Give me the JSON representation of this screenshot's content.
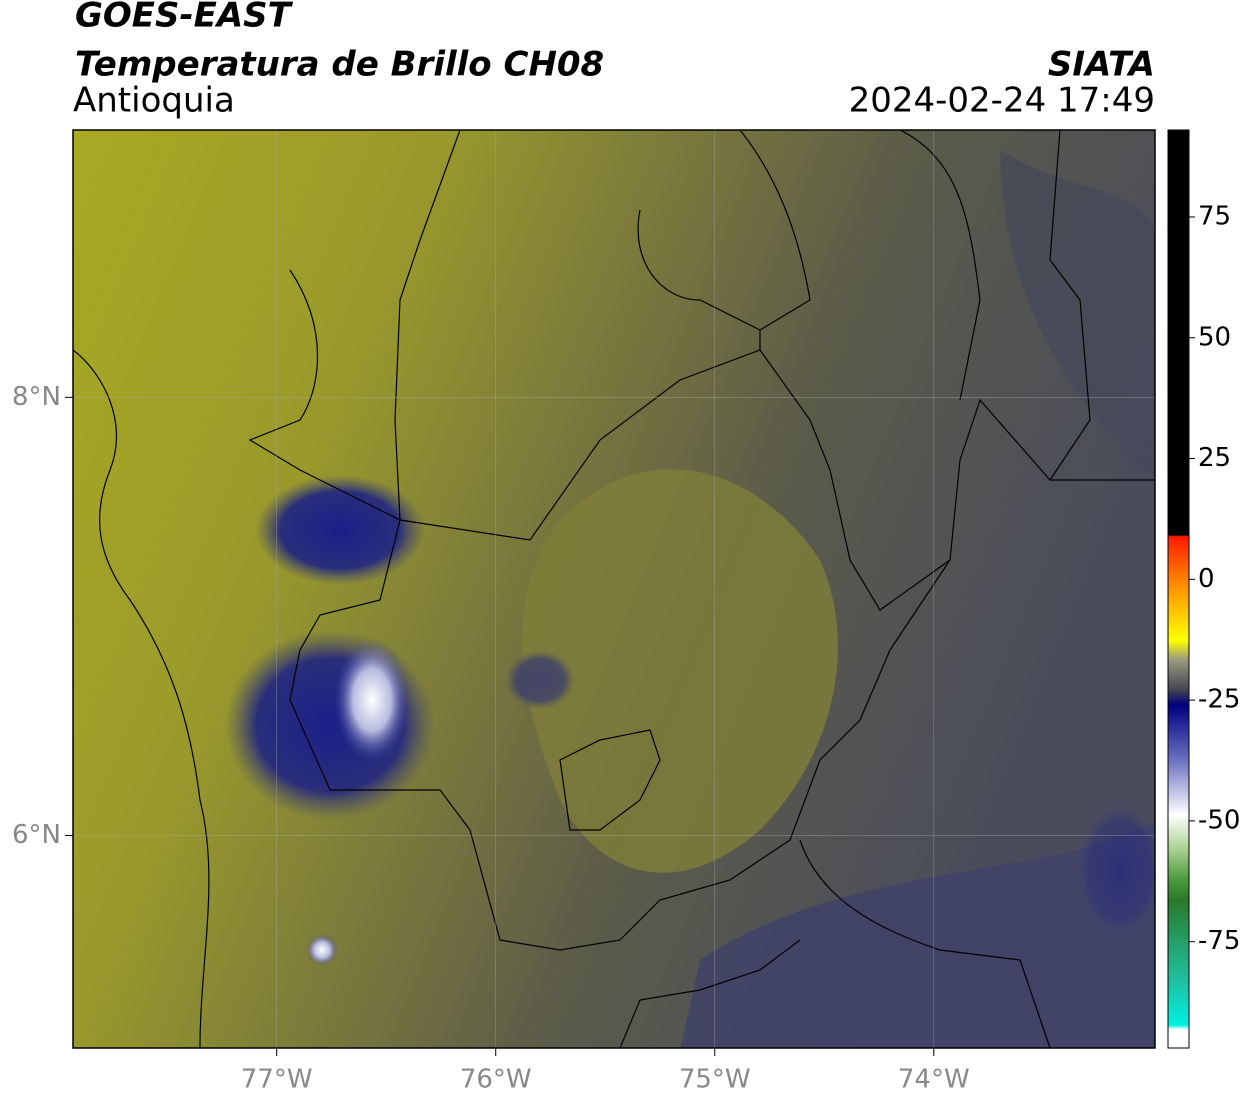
{
  "chart_data": {
    "type": "map",
    "title": "GOES-EAST",
    "subtitle": "Temperatura de Brillo CH08",
    "region": "Antioquia",
    "source": "SIATA",
    "datetime": "2024-02-24 17:49",
    "xlim": [
      -77.93,
      -72.99
    ],
    "ylim": [
      5.03,
      9.22
    ],
    "xticks": [
      {
        "value": -77,
        "label": "77°W"
      },
      {
        "value": -76,
        "label": "76°W"
      },
      {
        "value": -75,
        "label": "75°W"
      },
      {
        "value": -74,
        "label": "74°W"
      }
    ],
    "yticks": [
      {
        "value": 6,
        "label": "6°N"
      },
      {
        "value": 8,
        "label": "8°N"
      }
    ],
    "grid": true,
    "colorbar": {
      "lim": [
        -97,
        93
      ],
      "ticks": [
        75,
        50,
        25,
        0,
        -25,
        -50,
        -75
      ]
    }
  }
}
